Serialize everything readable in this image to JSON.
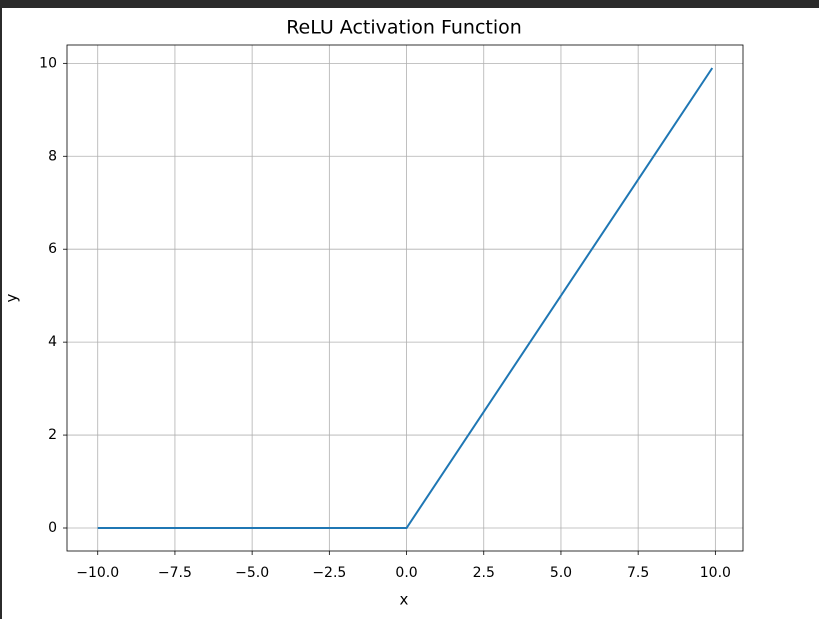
{
  "chart_data": {
    "type": "line",
    "title": "ReLU Activation Function",
    "x_label": "x",
    "y_label": "y",
    "x": [
      -10,
      0,
      9.9
    ],
    "values": [
      0,
      0,
      9.9
    ],
    "color": "#1f77b4",
    "xlim": [
      -10.995,
      10.895
    ],
    "ylim": [
      -0.495,
      10.395
    ],
    "xticks": [
      {
        "value": -10,
        "label": "−10.0"
      },
      {
        "value": -7.5,
        "label": "−7.5"
      },
      {
        "value": -5,
        "label": "−5.0"
      },
      {
        "value": -2.5,
        "label": "−2.5"
      },
      {
        "value": 0,
        "label": "0.0"
      },
      {
        "value": 2.5,
        "label": "2.5"
      },
      {
        "value": 5,
        "label": "5.0"
      },
      {
        "value": 7.5,
        "label": "7.5"
      },
      {
        "value": 10,
        "label": "10.0"
      }
    ],
    "yticks": [
      0,
      2,
      4,
      6,
      8,
      10
    ],
    "grid": true
  }
}
